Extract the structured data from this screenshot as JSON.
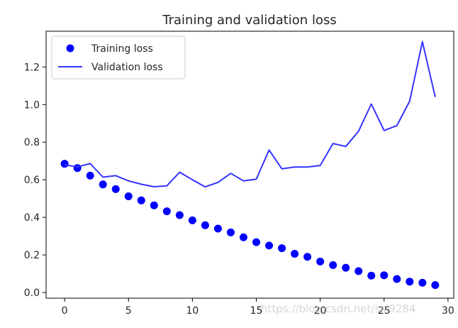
{
  "chart_data": {
    "type": "scatter+line",
    "title": "Training and validation loss",
    "xlabel": "",
    "ylabel": "",
    "xlim": [
      -1.45,
      30.45
    ],
    "ylim": [
      -0.03,
      1.39
    ],
    "xticks": [
      0,
      5,
      10,
      15,
      20,
      25,
      30
    ],
    "yticks": [
      0.0,
      0.2,
      0.4,
      0.6,
      0.8,
      1.0,
      1.2
    ],
    "xtick_labels": [
      "0",
      "5",
      "10",
      "15",
      "20",
      "25",
      "30"
    ],
    "ytick_labels": [
      "0.0",
      "0.2",
      "0.4",
      "0.6",
      "0.8",
      "1.0",
      "1.2"
    ],
    "grid": false,
    "legend_position": "top-left",
    "series": [
      {
        "name": "Training loss",
        "style": "dots",
        "color": "#0000ff",
        "x": [
          0,
          1,
          2,
          3,
          4,
          5,
          6,
          7,
          8,
          9,
          10,
          11,
          12,
          13,
          14,
          15,
          16,
          17,
          18,
          19,
          20,
          21,
          22,
          23,
          24,
          25,
          26,
          27,
          28,
          29
        ],
        "y": [
          0.685,
          0.662,
          0.622,
          0.575,
          0.55,
          0.512,
          0.49,
          0.464,
          0.432,
          0.412,
          0.384,
          0.358,
          0.34,
          0.32,
          0.294,
          0.268,
          0.25,
          0.236,
          0.206,
          0.19,
          0.165,
          0.146,
          0.132,
          0.114,
          0.09,
          0.092,
          0.072,
          0.058,
          0.052,
          0.04
        ]
      },
      {
        "name": "Validation loss",
        "style": "line",
        "color": "#3333ff",
        "x": [
          0,
          1,
          2,
          3,
          4,
          5,
          6,
          7,
          8,
          9,
          10,
          11,
          12,
          13,
          14,
          15,
          16,
          17,
          18,
          19,
          20,
          21,
          22,
          23,
          24,
          25,
          26,
          27,
          28,
          29
        ],
        "y": [
          0.68,
          0.668,
          0.686,
          0.614,
          0.622,
          0.594,
          0.576,
          0.563,
          0.568,
          0.64,
          0.6,
          0.562,
          0.586,
          0.634,
          0.594,
          0.603,
          0.758,
          0.658,
          0.668,
          0.668,
          0.676,
          0.793,
          0.777,
          0.858,
          1.003,
          0.862,
          0.888,
          1.018,
          1.334,
          1.04
        ]
      }
    ]
  },
  "watermark": "https://blog.csdn.net/ssl9284"
}
